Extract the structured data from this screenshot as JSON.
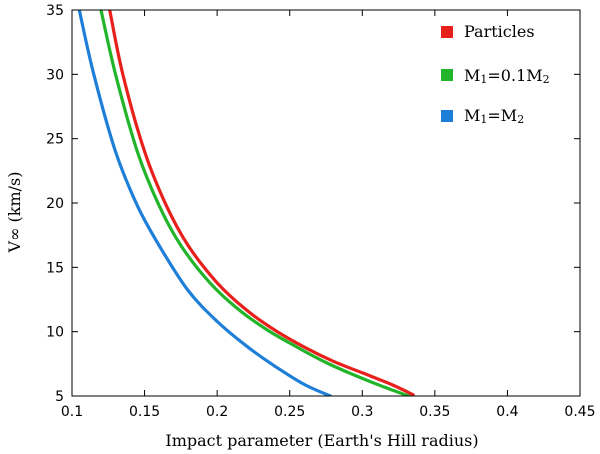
{
  "chart_data": {
    "type": "line",
    "title": "",
    "xlabel": "Impact parameter (Earth's Hill radius)",
    "ylabel": "V∞ (km/s)",
    "xlim": [
      0.1,
      0.45
    ],
    "ylim": [
      5,
      35
    ],
    "xticks": [
      "0.1",
      "0.15",
      "0.2",
      "0.25",
      "0.3",
      "0.35",
      "0.4",
      "0.45"
    ],
    "yticks": [
      "5",
      "10",
      "15",
      "20",
      "25",
      "30",
      "35"
    ],
    "legend_position": "top-right",
    "series": [
      {
        "name": "Particles",
        "color": "#e8201c",
        "x": [
          0.126,
          0.135,
          0.15,
          0.165,
          0.18,
          0.2,
          0.22,
          0.24,
          0.26,
          0.28,
          0.3,
          0.32,
          0.335
        ],
        "y": [
          35,
          30,
          24,
          19.8,
          16.7,
          13.8,
          11.7,
          10.1,
          8.8,
          7.7,
          6.8,
          5.9,
          5.1
        ]
      },
      {
        "name": "M1=0.1M2",
        "label_main": "M",
        "label_sub1": "1",
        "label_mid": "=0.1M",
        "label_sub2": "2",
        "color": "#22b52a",
        "x": [
          0.12,
          0.13,
          0.145,
          0.16,
          0.175,
          0.195,
          0.215,
          0.235,
          0.255,
          0.275,
          0.295,
          0.315,
          0.332
        ],
        "y": [
          35,
          30,
          24,
          19.8,
          16.7,
          13.8,
          11.7,
          10.1,
          8.8,
          7.6,
          6.6,
          5.7,
          5.0
        ]
      },
      {
        "name": "M1=M2",
        "label_main": "M",
        "label_sub1": "1",
        "label_mid": "=M",
        "label_sub2": "2",
        "color": "#1e7fd8",
        "x": [
          0.105,
          0.115,
          0.13,
          0.145,
          0.16,
          0.18,
          0.2,
          0.22,
          0.24,
          0.26,
          0.278
        ],
        "y": [
          35,
          30,
          24,
          19.8,
          16.7,
          13.2,
          10.8,
          8.9,
          7.3,
          5.9,
          5.0
        ]
      }
    ]
  }
}
